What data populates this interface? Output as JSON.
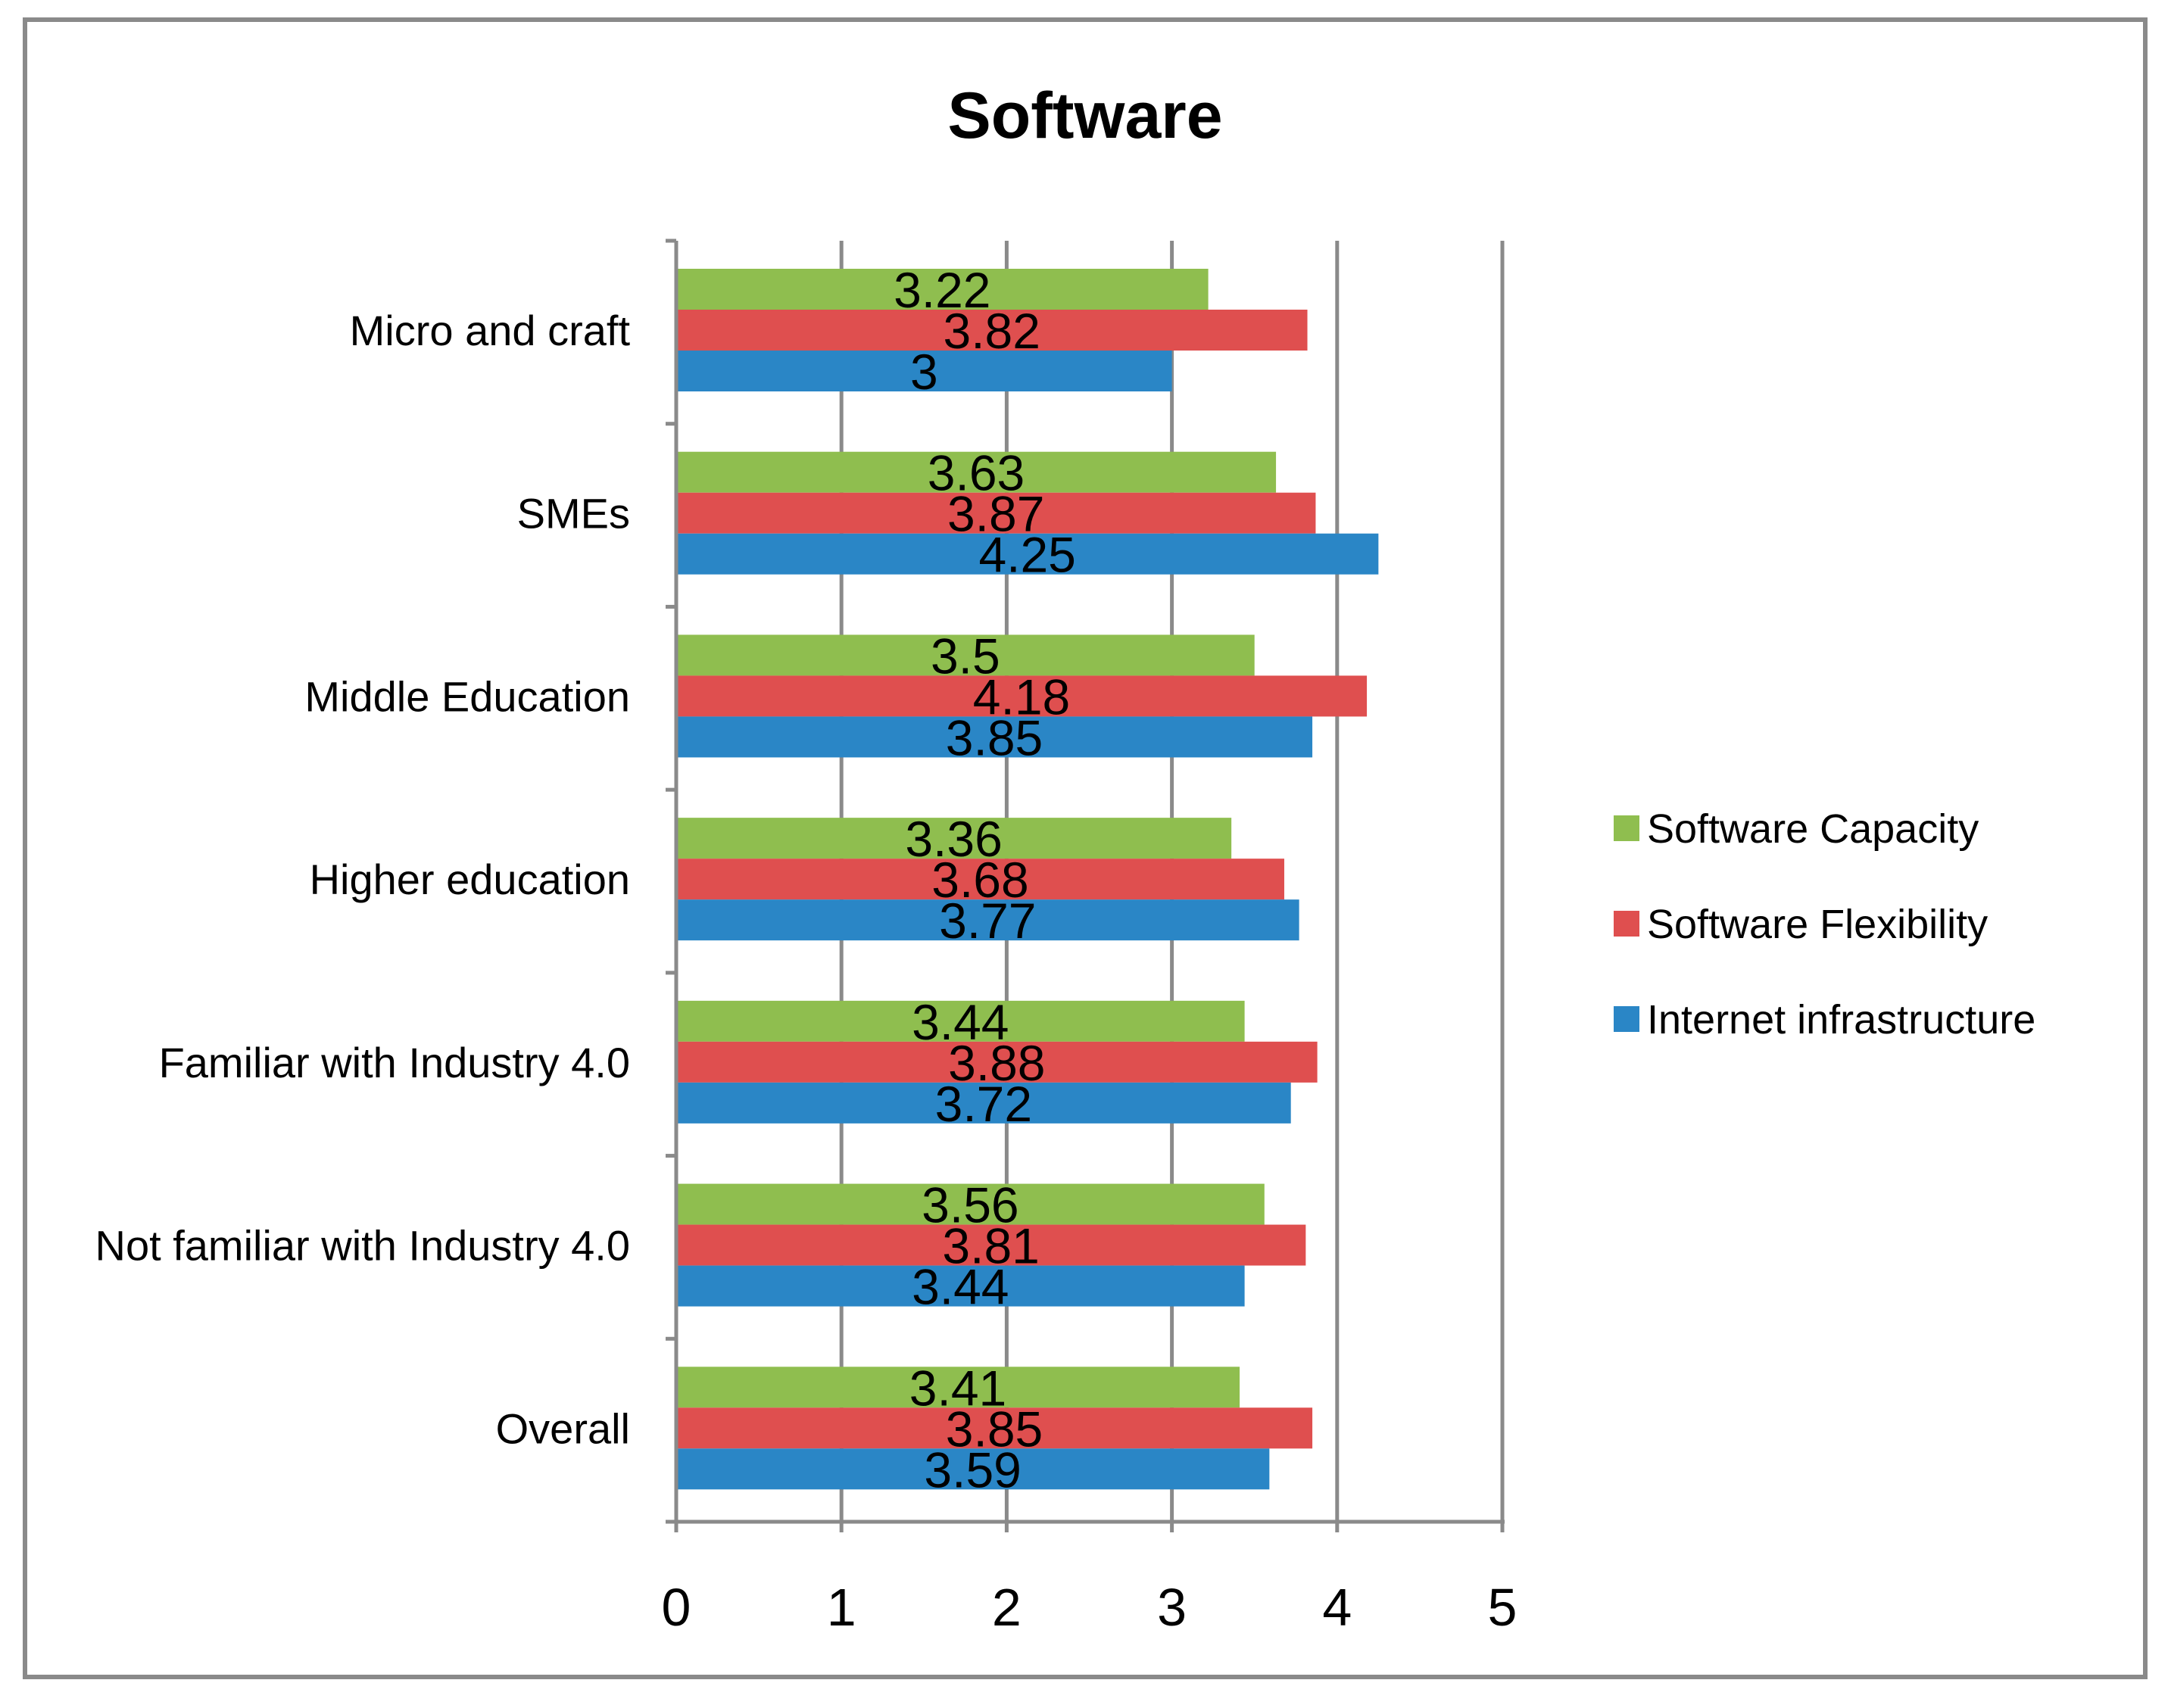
{
  "chart_data": {
    "type": "bar",
    "orientation": "horizontal",
    "title": "Software",
    "xlabel": "",
    "ylabel": "",
    "xlim": [
      0,
      5
    ],
    "x_ticks": [
      "0",
      "1",
      "2",
      "3",
      "4",
      "5"
    ],
    "grid": "vertical",
    "legend_position": "right",
    "categories": [
      "Micro and craft",
      "SMEs",
      "Middle Education",
      "Higher education",
      "Familiar with Industry 4.0",
      "Not familiar with Industry 4.0",
      "Overall"
    ],
    "series": [
      {
        "name": "Software Capacity",
        "color": "#8fbe4f",
        "values": [
          3.22,
          3.63,
          3.5,
          3.36,
          3.44,
          3.56,
          3.41
        ],
        "labels": [
          "3.22",
          "3.63",
          "3.5",
          "3.36",
          "3.44",
          "3.56",
          "3.41"
        ]
      },
      {
        "name": "Software Flexibility",
        "color": "#df4f4f",
        "values": [
          3.82,
          3.87,
          4.18,
          3.68,
          3.88,
          3.81,
          3.85
        ],
        "labels": [
          "3.82",
          "3.87",
          "4.18",
          "3.68",
          "3.88",
          "3.81",
          "3.85"
        ]
      },
      {
        "name": "Internet infrastructure",
        "color": "#2a86c6",
        "values": [
          3,
          4.25,
          3.85,
          3.77,
          3.72,
          3.44,
          3.59
        ],
        "labels": [
          "3",
          "4.25",
          "3.85",
          "3.77",
          "3.72",
          "3.44",
          "3.59"
        ]
      }
    ]
  }
}
